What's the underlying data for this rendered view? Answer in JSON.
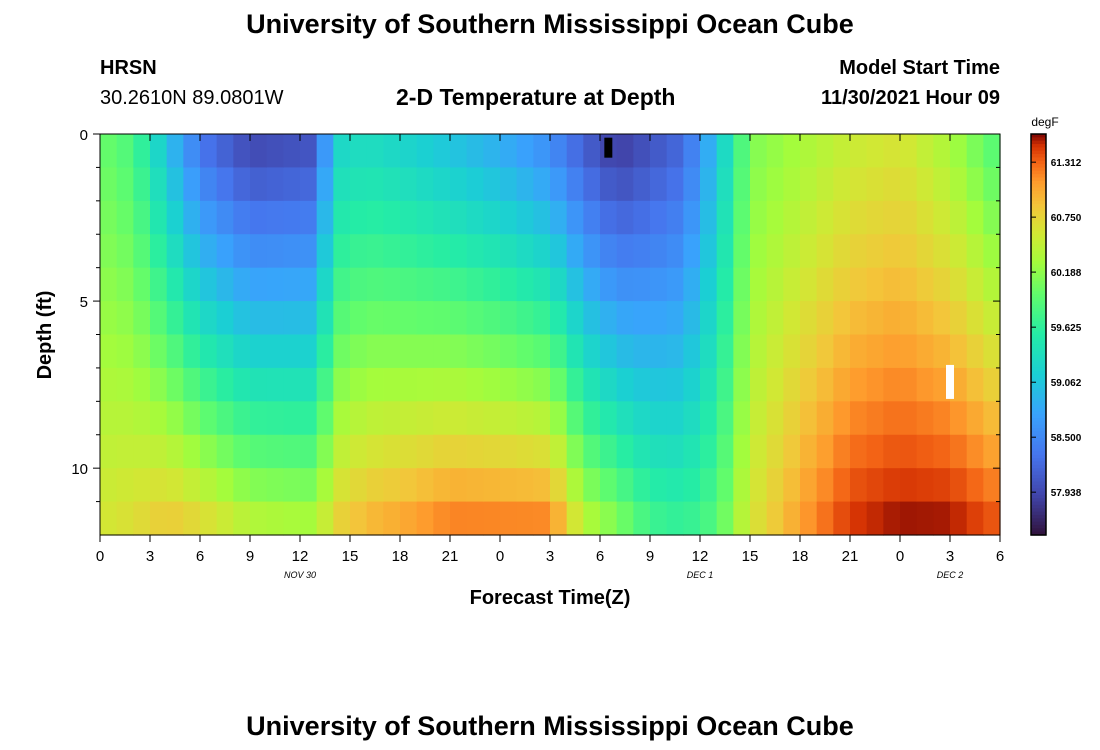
{
  "header": {
    "title": "University of Southern Mississippi Ocean Cube",
    "station_name": "HRSN",
    "station_coords": "30.2610N  89.0801W",
    "plot_title": "2-D Temperature at Depth",
    "model_label": "Model Start Time",
    "model_time": "11/30/2021 Hour 09"
  },
  "footer": {
    "title": "University of Southern Mississippi Ocean Cube"
  },
  "chart_data": {
    "type": "heatmap",
    "title": "2-D Temperature at Depth",
    "xlabel": "Forecast Time(Z)",
    "ylabel": "Depth (ft)",
    "x_start_hour": 0,
    "x_end_hour": 54,
    "x_ticks": [
      0,
      3,
      6,
      9,
      12,
      15,
      18,
      21,
      24,
      27,
      30,
      33,
      36,
      39,
      42,
      45,
      48,
      51,
      54
    ],
    "x_tick_labels": [
      "0",
      "3",
      "6",
      "9",
      "12",
      "15",
      "18",
      "21",
      "0",
      "3",
      "6",
      "9",
      "12",
      "15",
      "18",
      "21",
      "0",
      "3",
      "6"
    ],
    "date_labels": [
      {
        "hour": 12,
        "text": "NOV 30"
      },
      {
        "hour": 36,
        "text": "DEC 1"
      },
      {
        "hour": 51,
        "text": "DEC 2"
      }
    ],
    "ylim": [
      0,
      12
    ],
    "y_major_ticks": [
      0,
      5,
      10
    ],
    "y_tick_labels": [
      "0",
      "5",
      "10"
    ],
    "y_minor_ticks": [
      1,
      2,
      3,
      4,
      6,
      7,
      8,
      9,
      11
    ],
    "colorbar": {
      "unit": "degF",
      "min": 57.5,
      "max": 61.6,
      "tick_values": [
        61.312,
        60.75,
        60.188,
        59.625,
        59.062,
        58.5,
        57.938
      ],
      "tick_labels": [
        "61.312",
        "60.750",
        "60.188",
        "59.625",
        "59.062",
        "58.500",
        "57.938"
      ]
    },
    "grid_note": "temperature (degF) at depth levels 0.5..12 ft step 1, hourly from 0 to 54",
    "keyframes": [
      {
        "hour": 0,
        "top": 60.0,
        "bottom": 60.6
      },
      {
        "hour": 2,
        "top": 59.8,
        "bottom": 60.7
      },
      {
        "hour": 4,
        "top": 59.0,
        "bottom": 60.9
      },
      {
        "hour": 6,
        "top": 58.3,
        "bottom": 60.8
      },
      {
        "hour": 9,
        "top": 57.9,
        "bottom": 60.5
      },
      {
        "hour": 13,
        "top": 58.0,
        "bottom": 60.4
      },
      {
        "hour": 14,
        "top": 59.2,
        "bottom": 60.8
      },
      {
        "hour": 16,
        "top": 59.3,
        "bottom": 61.0
      },
      {
        "hour": 18,
        "top": 59.2,
        "bottom": 61.1
      },
      {
        "hour": 21,
        "top": 59.0,
        "bottom": 61.3
      },
      {
        "hour": 24,
        "top": 58.8,
        "bottom": 61.3
      },
      {
        "hour": 27,
        "top": 58.5,
        "bottom": 61.3
      },
      {
        "hour": 29,
        "top": 58.1,
        "bottom": 60.5
      },
      {
        "hour": 31,
        "top": 57.8,
        "bottom": 60.2
      },
      {
        "hour": 33,
        "top": 58.0,
        "bottom": 59.8
      },
      {
        "hour": 35,
        "top": 58.2,
        "bottom": 59.7
      },
      {
        "hour": 37,
        "top": 59.0,
        "bottom": 59.9
      },
      {
        "hour": 39,
        "top": 60.1,
        "bottom": 60.6
      },
      {
        "hour": 42,
        "top": 60.3,
        "bottom": 61.1
      },
      {
        "hour": 45,
        "top": 60.5,
        "bottom": 61.5
      },
      {
        "hour": 48,
        "top": 60.6,
        "bottom": 61.6
      },
      {
        "hour": 51,
        "top": 60.3,
        "bottom": 61.6
      },
      {
        "hour": 54,
        "top": 59.8,
        "bottom": 61.4
      }
    ],
    "missing_cells": [
      {
        "hour": 30.5,
        "depth": 0.2,
        "color": "#000000"
      },
      {
        "hour": 51,
        "depth": 7,
        "color": "#ffffff"
      }
    ]
  }
}
